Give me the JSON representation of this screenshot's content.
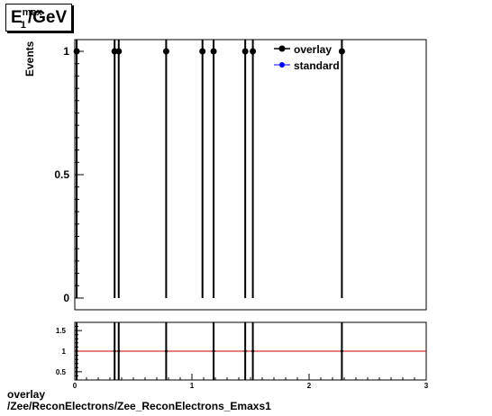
{
  "histogram_title": {
    "base": "E",
    "sup": "max",
    "sub": "1",
    "rest": "/GeV"
  },
  "footer": {
    "line1": "overlay",
    "line2": "/Zee/ReconElectrons/Zee_ReconElectrons_Emaxs1"
  },
  "colors": {
    "overlay": "#000000",
    "standard": "#0000ff",
    "ratio_line": "#cc0000"
  },
  "chart_data": [
    {
      "type": "scatter",
      "role": "main",
      "title": "",
      "xlabel": "",
      "ylabel": "Events",
      "xlim": [
        0,
        3
      ],
      "ylim": [
        0,
        1.0
      ],
      "y_ticks": [
        0,
        0.5,
        1
      ],
      "y_tick_labels": [
        "0",
        "0.5",
        "1"
      ],
      "grid": false,
      "legend": {
        "placement": "top-right",
        "entries": [
          "overlay",
          "standard"
        ]
      },
      "series": [
        {
          "name": "overlay",
          "color": "#000000",
          "x": [
            0.016,
            0.34,
            0.375,
            0.78,
            1.09,
            1.185,
            1.455,
            1.52,
            2.28
          ],
          "y": [
            1,
            1,
            1,
            1,
            1,
            1,
            1,
            1,
            1
          ],
          "yerr": [
            1,
            1,
            1,
            1,
            1,
            1,
            1,
            1,
            1
          ]
        },
        {
          "name": "standard",
          "color": "#0000ff",
          "x": [],
          "y": []
        }
      ]
    },
    {
      "type": "scatter",
      "role": "ratio",
      "xlim": [
        0,
        3
      ],
      "ylim": [
        0.3,
        1.7
      ],
      "x_ticks": [
        0,
        1,
        2,
        3
      ],
      "x_tick_labels": [
        "0",
        "1",
        "2",
        "3"
      ],
      "y_ticks": [
        0.5,
        1,
        1.5
      ],
      "y_tick_labels": [
        "0.5",
        "1",
        "1.5"
      ],
      "reference_line": 1,
      "series": [
        {
          "name": "ratio",
          "color": "#000000",
          "x": [
            0.016,
            0.34,
            0.375,
            0.78,
            1.185,
            1.455,
            1.52,
            2.28
          ],
          "y": [
            1,
            1,
            1,
            1,
            1,
            1,
            1,
            1
          ]
        }
      ]
    }
  ]
}
